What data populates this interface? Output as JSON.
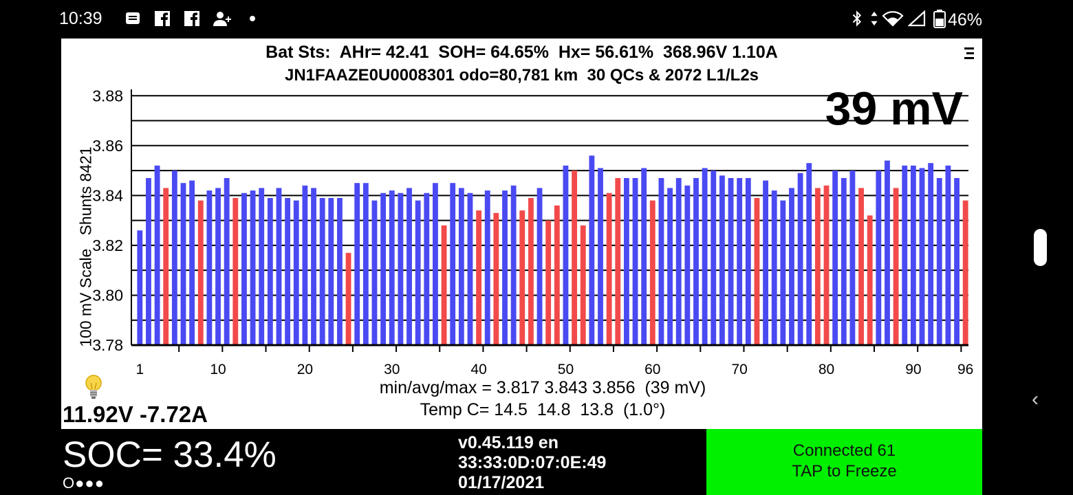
{
  "status_bar": {
    "time": "10:39",
    "icons": [
      "message-icon",
      "facebook-icon",
      "facebook-icon",
      "add-contact-icon",
      "dot-icon"
    ],
    "right_icons": [
      "bluetooth-icon",
      "data-arrows-icon",
      "wifi-icon",
      "signal-icon",
      "battery-icon"
    ],
    "battery_percent": "46%"
  },
  "header": {
    "line1": "Bat Sts:  AHr= 42.41  SOH= 64.65%  Hx= 56.61%  368.96V 1.10A",
    "line2": "JN1FAAZE0U0008301 odo=80,781 km  30 QCs & 2072 L1/L2s",
    "menu_icon": "menu-icon"
  },
  "spread_display": "39 mV",
  "y_axis_title": "100 mV Scale   Shunts 8421",
  "summary": {
    "minavgmax": "min/avg/max = 3.817 3.843 3.856  (39 mV)",
    "temps": "Temp C= 14.5  14.8  13.8  (1.0°)"
  },
  "aux_battery": "11.92V -7.72A",
  "soc": "SOC= 33.4%",
  "soc_dots": "O●●●",
  "version": "v0.45.119 en",
  "device_id": "33:33:0D:07:0E:49",
  "date": "01/17/2021",
  "connection": {
    "line1": "Connected 61",
    "line2": "TAP to Freeze",
    "bg": "#00f000"
  },
  "colors": {
    "normal_bar": "#4a4af2",
    "shunt_bar": "#f24a4a"
  },
  "chart_data": {
    "type": "bar",
    "xlabel": "",
    "ylabel": "100 mV Scale   Shunts 8421",
    "ylim": [
      3.78,
      3.882
    ],
    "yticks": [
      "3.78",
      "3.80",
      "3.82",
      "3.84",
      "3.86",
      "3.88"
    ],
    "xticks": [
      "1",
      "10",
      "20",
      "30",
      "40",
      "50",
      "60",
      "70",
      "80",
      "90",
      "96"
    ],
    "grid": true,
    "categories": [
      1,
      2,
      3,
      4,
      5,
      6,
      7,
      8,
      9,
      10,
      11,
      12,
      13,
      14,
      15,
      16,
      17,
      18,
      19,
      20,
      21,
      22,
      23,
      24,
      25,
      26,
      27,
      28,
      29,
      30,
      31,
      32,
      33,
      34,
      35,
      36,
      37,
      38,
      39,
      40,
      41,
      42,
      43,
      44,
      45,
      46,
      47,
      48,
      49,
      50,
      51,
      52,
      53,
      54,
      55,
      56,
      57,
      58,
      59,
      60,
      61,
      62,
      63,
      64,
      65,
      66,
      67,
      68,
      69,
      70,
      71,
      72,
      73,
      74,
      75,
      76,
      77,
      78,
      79,
      80,
      81,
      82,
      83,
      84,
      85,
      86,
      87,
      88,
      89,
      90,
      91,
      92,
      93,
      94,
      95,
      96
    ],
    "values": [
      3.826,
      3.847,
      3.852,
      3.843,
      3.85,
      3.845,
      3.846,
      3.838,
      3.842,
      3.843,
      3.847,
      3.839,
      3.841,
      3.842,
      3.843,
      3.839,
      3.843,
      3.839,
      3.838,
      3.844,
      3.843,
      3.839,
      3.839,
      3.839,
      3.817,
      3.845,
      3.845,
      3.838,
      3.841,
      3.842,
      3.841,
      3.843,
      3.838,
      3.841,
      3.845,
      3.828,
      3.845,
      3.843,
      3.841,
      3.834,
      3.842,
      3.833,
      3.842,
      3.844,
      3.834,
      3.839,
      3.843,
      3.83,
      3.836,
      3.852,
      3.85,
      3.828,
      3.856,
      3.851,
      3.841,
      3.847,
      3.847,
      3.847,
      3.851,
      3.838,
      3.847,
      3.843,
      3.847,
      3.844,
      3.847,
      3.851,
      3.85,
      3.848,
      3.847,
      3.847,
      3.847,
      3.839,
      3.846,
      3.842,
      3.838,
      3.843,
      3.849,
      3.853,
      3.843,
      3.844,
      3.85,
      3.847,
      3.85,
      3.843,
      3.832,
      3.85,
      3.854,
      3.843,
      3.852,
      3.852,
      3.851,
      3.853,
      3.847,
      3.852,
      3.847,
      3.838
    ],
    "shunted": [
      4,
      8,
      12,
      25,
      36,
      40,
      42,
      45,
      46,
      48,
      49,
      51,
      52,
      55,
      56,
      60,
      72,
      79,
      80,
      84,
      85,
      88,
      96
    ]
  }
}
